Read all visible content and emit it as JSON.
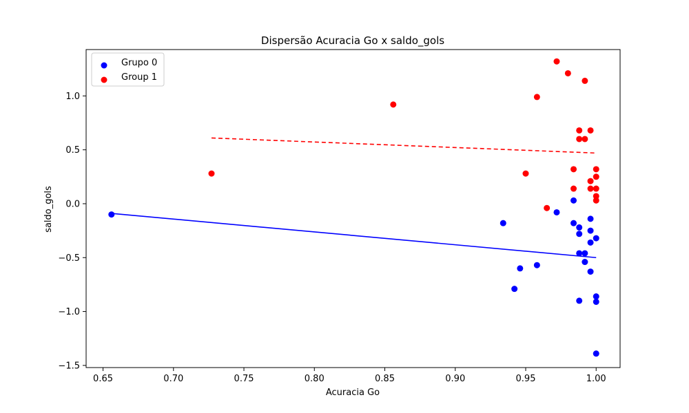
{
  "chart_data": {
    "type": "scatter",
    "title": "Dispersão Acuracia Go x saldo_gols",
    "xlabel": "Acuracia Go",
    "ylabel": "saldo_gols",
    "xlim": [
      0.638,
      1.017
    ],
    "ylim": [
      -1.52,
      1.43
    ],
    "x_ticks": [
      0.65,
      0.7,
      0.75,
      0.8,
      0.85,
      0.9,
      0.95,
      1.0
    ],
    "x_tick_labels": [
      "0.65",
      "0.70",
      "0.75",
      "0.80",
      "0.85",
      "0.90",
      "0.95",
      "1.00"
    ],
    "y_ticks": [
      -1.5,
      -1.0,
      -0.5,
      0.0,
      0.5,
      1.0
    ],
    "y_tick_labels": [
      "−1.5",
      "−1.0",
      "−0.5",
      "0.0",
      "0.5",
      "1.0"
    ],
    "grid": false,
    "legend_position": "top-left",
    "series": [
      {
        "name": "Grupo 0",
        "color": "#0000ff",
        "points": [
          [
            0.656,
            -0.1
          ],
          [
            0.934,
            -0.18
          ],
          [
            0.942,
            -0.79
          ],
          [
            0.946,
            -0.6
          ],
          [
            0.958,
            -0.57
          ],
          [
            0.972,
            -0.08
          ],
          [
            0.984,
            -0.18
          ],
          [
            0.984,
            0.03
          ],
          [
            0.988,
            -0.22
          ],
          [
            0.988,
            -0.28
          ],
          [
            0.988,
            -0.46
          ],
          [
            0.988,
            -0.9
          ],
          [
            0.992,
            -0.46
          ],
          [
            0.992,
            -0.54
          ],
          [
            0.996,
            -0.14
          ],
          [
            0.996,
            -0.25
          ],
          [
            0.996,
            -0.36
          ],
          [
            0.996,
            -0.63
          ],
          [
            1.0,
            -0.32
          ],
          [
            1.0,
            -0.86
          ],
          [
            1.0,
            -0.91
          ],
          [
            1.0,
            -1.39
          ]
        ],
        "trend": {
          "x": [
            0.656,
            1.0
          ],
          "y": [
            -0.09,
            -0.5
          ],
          "style": "solid"
        }
      },
      {
        "name": "Group 1",
        "color": "#ff0000",
        "points": [
          [
            0.727,
            0.28
          ],
          [
            0.856,
            0.92
          ],
          [
            0.95,
            0.28
          ],
          [
            0.958,
            0.99
          ],
          [
            0.965,
            -0.04
          ],
          [
            0.972,
            1.32
          ],
          [
            0.98,
            1.21
          ],
          [
            0.984,
            0.32
          ],
          [
            0.984,
            0.14
          ],
          [
            0.988,
            0.68
          ],
          [
            0.988,
            0.6
          ],
          [
            0.992,
            1.14
          ],
          [
            0.992,
            0.6
          ],
          [
            0.996,
            0.68
          ],
          [
            0.996,
            0.21
          ],
          [
            0.996,
            0.14
          ],
          [
            1.0,
            0.32
          ],
          [
            1.0,
            0.25
          ],
          [
            1.0,
            0.14
          ],
          [
            1.0,
            0.07
          ],
          [
            1.0,
            0.03
          ]
        ],
        "trend": {
          "x": [
            0.727,
            1.0
          ],
          "y": [
            0.61,
            0.47
          ],
          "style": "dashed"
        }
      }
    ]
  }
}
